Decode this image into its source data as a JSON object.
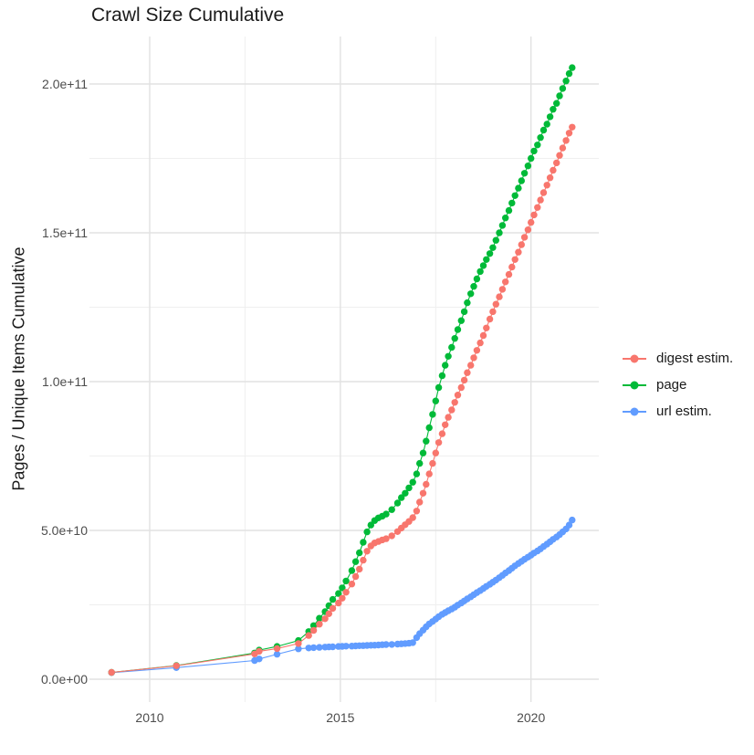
{
  "chart_data": {
    "type": "line",
    "marker": "circle",
    "title": "Crawl Size Cumulative",
    "xlabel": "",
    "ylabel": "Pages / Unique Items Cumulative",
    "legend_position": "right",
    "grid": true,
    "x_range": [
      2008.4,
      2021.8
    ],
    "y_range_e9": [
      -10,
      215
    ],
    "y_unit": "items (values stored in billions, 1e9)",
    "x_axis": {
      "ticks": [
        {
          "year": 2010,
          "label": "2010"
        },
        {
          "year": 2015,
          "label": "2015"
        },
        {
          "year": 2020,
          "label": "2020"
        }
      ],
      "minor_ticks": [
        2012.5,
        2017.5
      ]
    },
    "y_axis": {
      "ticks": [
        {
          "value": 0,
          "label": "0.0e+00"
        },
        {
          "value": 50,
          "label": "5.0e+10"
        },
        {
          "value": 100,
          "label": "1.0e+11"
        },
        {
          "value": 150,
          "label": "1.5e+11"
        },
        {
          "value": 200,
          "label": "2.0e+11"
        }
      ],
      "minor_ticks": [
        25,
        75,
        125,
        175
      ]
    },
    "series": [
      {
        "name": "digest estim.",
        "color": "#F8766D",
        "points": [
          [
            2009.0,
            2.3
          ],
          [
            2010.7,
            4.5
          ],
          [
            2012.75,
            8.5
          ],
          [
            2012.87,
            9.4
          ],
          [
            2013.34,
            10.3
          ],
          [
            2013.9,
            12.0
          ],
          [
            2014.17,
            14.7
          ],
          [
            2014.3,
            16.4
          ],
          [
            2014.45,
            18.5
          ],
          [
            2014.6,
            20.3
          ],
          [
            2014.7,
            22.0
          ],
          [
            2014.8,
            23.8
          ],
          [
            2014.95,
            25.6
          ],
          [
            2015.05,
            27.2
          ],
          [
            2015.15,
            29.2
          ],
          [
            2015.3,
            32.0
          ],
          [
            2015.4,
            34.5
          ],
          [
            2015.5,
            37.0
          ],
          [
            2015.6,
            40.0
          ],
          [
            2015.7,
            43.0
          ],
          [
            2015.8,
            44.8
          ],
          [
            2015.9,
            45.8
          ],
          [
            2016.0,
            46.3
          ],
          [
            2016.1,
            46.8
          ],
          [
            2016.2,
            47.2
          ],
          [
            2016.35,
            48.2
          ],
          [
            2016.5,
            49.6
          ],
          [
            2016.6,
            50.8
          ],
          [
            2016.7,
            51.9
          ],
          [
            2016.8,
            53.0
          ],
          [
            2016.9,
            54.3
          ],
          [
            2017.0,
            56.5
          ],
          [
            2017.08,
            59.5
          ],
          [
            2017.17,
            62.5
          ],
          [
            2017.25,
            65.5
          ],
          [
            2017.33,
            69.0
          ],
          [
            2017.42,
            72.5
          ],
          [
            2017.5,
            76.0
          ],
          [
            2017.58,
            79.5
          ],
          [
            2017.67,
            82.5
          ],
          [
            2017.75,
            85.5
          ],
          [
            2017.83,
            88.0
          ],
          [
            2017.92,
            90.5
          ],
          [
            2018.0,
            93.0
          ],
          [
            2018.08,
            95.5
          ],
          [
            2018.17,
            98.0
          ],
          [
            2018.25,
            100.5
          ],
          [
            2018.33,
            103.0
          ],
          [
            2018.42,
            105.5
          ],
          [
            2018.5,
            108.0
          ],
          [
            2018.58,
            110.5
          ],
          [
            2018.67,
            113.0
          ],
          [
            2018.75,
            115.5
          ],
          [
            2018.83,
            118.0
          ],
          [
            2018.92,
            121.0
          ],
          [
            2019.0,
            123.5
          ],
          [
            2019.08,
            126.0
          ],
          [
            2019.17,
            128.5
          ],
          [
            2019.25,
            131.0
          ],
          [
            2019.33,
            133.5
          ],
          [
            2019.42,
            136.0
          ],
          [
            2019.5,
            138.5
          ],
          [
            2019.58,
            141.0
          ],
          [
            2019.67,
            143.5
          ],
          [
            2019.75,
            146.0
          ],
          [
            2019.83,
            148.5
          ],
          [
            2019.92,
            151.0
          ],
          [
            2020.0,
            153.5
          ],
          [
            2020.08,
            156.0
          ],
          [
            2020.17,
            158.5
          ],
          [
            2020.25,
            161.0
          ],
          [
            2020.33,
            163.5
          ],
          [
            2020.42,
            166.0
          ],
          [
            2020.5,
            168.5
          ],
          [
            2020.58,
            171.0
          ],
          [
            2020.67,
            173.5
          ],
          [
            2020.75,
            176.0
          ],
          [
            2020.83,
            178.5
          ],
          [
            2020.92,
            181.0
          ],
          [
            2021.0,
            183.5
          ],
          [
            2021.08,
            185.5
          ]
        ]
      },
      {
        "name": "page",
        "color": "#00BA38",
        "points": [
          [
            2009.0,
            2.3
          ],
          [
            2010.7,
            4.6
          ],
          [
            2012.75,
            8.8
          ],
          [
            2012.87,
            9.8
          ],
          [
            2013.34,
            11.0
          ],
          [
            2013.9,
            13.0
          ],
          [
            2014.17,
            16.0
          ],
          [
            2014.3,
            18.0
          ],
          [
            2014.45,
            20.5
          ],
          [
            2014.6,
            22.7
          ],
          [
            2014.7,
            24.7
          ],
          [
            2014.8,
            26.8
          ],
          [
            2014.95,
            28.8
          ],
          [
            2015.05,
            30.7
          ],
          [
            2015.15,
            33.0
          ],
          [
            2015.3,
            36.5
          ],
          [
            2015.4,
            39.5
          ],
          [
            2015.5,
            42.5
          ],
          [
            2015.6,
            46.0
          ],
          [
            2015.7,
            49.5
          ],
          [
            2015.8,
            51.8
          ],
          [
            2015.9,
            53.3
          ],
          [
            2016.0,
            54.2
          ],
          [
            2016.1,
            54.8
          ],
          [
            2016.2,
            55.5
          ],
          [
            2016.35,
            57.0
          ],
          [
            2016.5,
            59.2
          ],
          [
            2016.6,
            61.0
          ],
          [
            2016.7,
            62.5
          ],
          [
            2016.8,
            64.3
          ],
          [
            2016.9,
            66.2
          ],
          [
            2017.0,
            69.0
          ],
          [
            2017.08,
            72.5
          ],
          [
            2017.17,
            76.0
          ],
          [
            2017.25,
            80.0
          ],
          [
            2017.33,
            84.5
          ],
          [
            2017.42,
            89.0
          ],
          [
            2017.5,
            93.5
          ],
          [
            2017.58,
            98.0
          ],
          [
            2017.67,
            102.0
          ],
          [
            2017.75,
            105.5
          ],
          [
            2017.83,
            108.5
          ],
          [
            2017.92,
            111.5
          ],
          [
            2018.0,
            114.5
          ],
          [
            2018.08,
            117.5
          ],
          [
            2018.17,
            120.5
          ],
          [
            2018.25,
            123.5
          ],
          [
            2018.33,
            126.5
          ],
          [
            2018.42,
            129.5
          ],
          [
            2018.5,
            132.0
          ],
          [
            2018.58,
            134.5
          ],
          [
            2018.67,
            137.0
          ],
          [
            2018.75,
            139.0
          ],
          [
            2018.83,
            141.0
          ],
          [
            2018.92,
            143.0
          ],
          [
            2019.0,
            145.0
          ],
          [
            2019.08,
            147.5
          ],
          [
            2019.17,
            150.0
          ],
          [
            2019.25,
            152.5
          ],
          [
            2019.33,
            155.0
          ],
          [
            2019.42,
            157.5
          ],
          [
            2019.5,
            160.0
          ],
          [
            2019.58,
            162.5
          ],
          [
            2019.67,
            165.0
          ],
          [
            2019.75,
            167.5
          ],
          [
            2019.83,
            170.0
          ],
          [
            2019.92,
            172.5
          ],
          [
            2020.0,
            175.0
          ],
          [
            2020.08,
            177.5
          ],
          [
            2020.17,
            179.5
          ],
          [
            2020.25,
            182.0
          ],
          [
            2020.33,
            184.5
          ],
          [
            2020.42,
            186.5
          ],
          [
            2020.5,
            189.0
          ],
          [
            2020.58,
            191.5
          ],
          [
            2020.67,
            193.5
          ],
          [
            2020.75,
            196.0
          ],
          [
            2020.83,
            198.5
          ],
          [
            2020.92,
            201.0
          ],
          [
            2021.0,
            203.5
          ],
          [
            2021.08,
            205.5
          ]
        ]
      },
      {
        "name": "url estim.",
        "color": "#619CFF",
        "points": [
          [
            2009.0,
            2.2
          ],
          [
            2010.7,
            3.9
          ],
          [
            2012.75,
            6.3
          ],
          [
            2012.87,
            6.8
          ],
          [
            2013.34,
            8.4
          ],
          [
            2013.9,
            10.2
          ],
          [
            2014.17,
            10.5
          ],
          [
            2014.3,
            10.6
          ],
          [
            2014.45,
            10.7
          ],
          [
            2014.6,
            10.8
          ],
          [
            2014.7,
            10.85
          ],
          [
            2014.8,
            10.9
          ],
          [
            2014.95,
            11.0
          ],
          [
            2015.05,
            11.05
          ],
          [
            2015.15,
            11.1
          ],
          [
            2015.3,
            11.15
          ],
          [
            2015.4,
            11.2
          ],
          [
            2015.5,
            11.25
          ],
          [
            2015.6,
            11.3
          ],
          [
            2015.7,
            11.35
          ],
          [
            2015.8,
            11.4
          ],
          [
            2015.9,
            11.45
          ],
          [
            2016.0,
            11.5
          ],
          [
            2016.1,
            11.6
          ],
          [
            2016.2,
            11.65
          ],
          [
            2016.35,
            11.7
          ],
          [
            2016.5,
            11.8
          ],
          [
            2016.6,
            11.9
          ],
          [
            2016.7,
            12.0
          ],
          [
            2016.8,
            12.1
          ],
          [
            2016.9,
            12.3
          ],
          [
            2017.0,
            14.0
          ],
          [
            2017.08,
            15.3
          ],
          [
            2017.17,
            16.5
          ],
          [
            2017.25,
            17.6
          ],
          [
            2017.33,
            18.6
          ],
          [
            2017.42,
            19.4
          ],
          [
            2017.5,
            20.2
          ],
          [
            2017.58,
            21.0
          ],
          [
            2017.67,
            21.8
          ],
          [
            2017.75,
            22.4
          ],
          [
            2017.83,
            23.0
          ],
          [
            2017.92,
            23.6
          ],
          [
            2018.0,
            24.2
          ],
          [
            2018.08,
            24.9
          ],
          [
            2018.17,
            25.6
          ],
          [
            2018.25,
            26.3
          ],
          [
            2018.33,
            27.0
          ],
          [
            2018.42,
            27.7
          ],
          [
            2018.5,
            28.4
          ],
          [
            2018.58,
            29.1
          ],
          [
            2018.67,
            29.8
          ],
          [
            2018.75,
            30.5
          ],
          [
            2018.83,
            31.2
          ],
          [
            2018.92,
            31.9
          ],
          [
            2019.0,
            32.6
          ],
          [
            2019.08,
            33.3
          ],
          [
            2019.17,
            34.1
          ],
          [
            2019.25,
            34.9
          ],
          [
            2019.33,
            35.7
          ],
          [
            2019.42,
            36.5
          ],
          [
            2019.5,
            37.3
          ],
          [
            2019.58,
            38.1
          ],
          [
            2019.67,
            38.9
          ],
          [
            2019.75,
            39.6
          ],
          [
            2019.83,
            40.3
          ],
          [
            2019.92,
            41.0
          ],
          [
            2020.0,
            41.7
          ],
          [
            2020.08,
            42.4
          ],
          [
            2020.17,
            43.1
          ],
          [
            2020.25,
            43.8
          ],
          [
            2020.33,
            44.6
          ],
          [
            2020.42,
            45.4
          ],
          [
            2020.5,
            46.2
          ],
          [
            2020.58,
            47.0
          ],
          [
            2020.67,
            47.8
          ],
          [
            2020.75,
            48.6
          ],
          [
            2020.83,
            49.5
          ],
          [
            2020.92,
            50.5
          ],
          [
            2021.0,
            51.8
          ],
          [
            2021.08,
            53.5
          ]
        ]
      }
    ],
    "style": {
      "grid_major_color": "#e2e2e2",
      "grid_minor_color": "#efefef",
      "tick_label_color": "#4d4d4d",
      "text_color": "#1a1a1a",
      "background": "#ffffff"
    }
  }
}
